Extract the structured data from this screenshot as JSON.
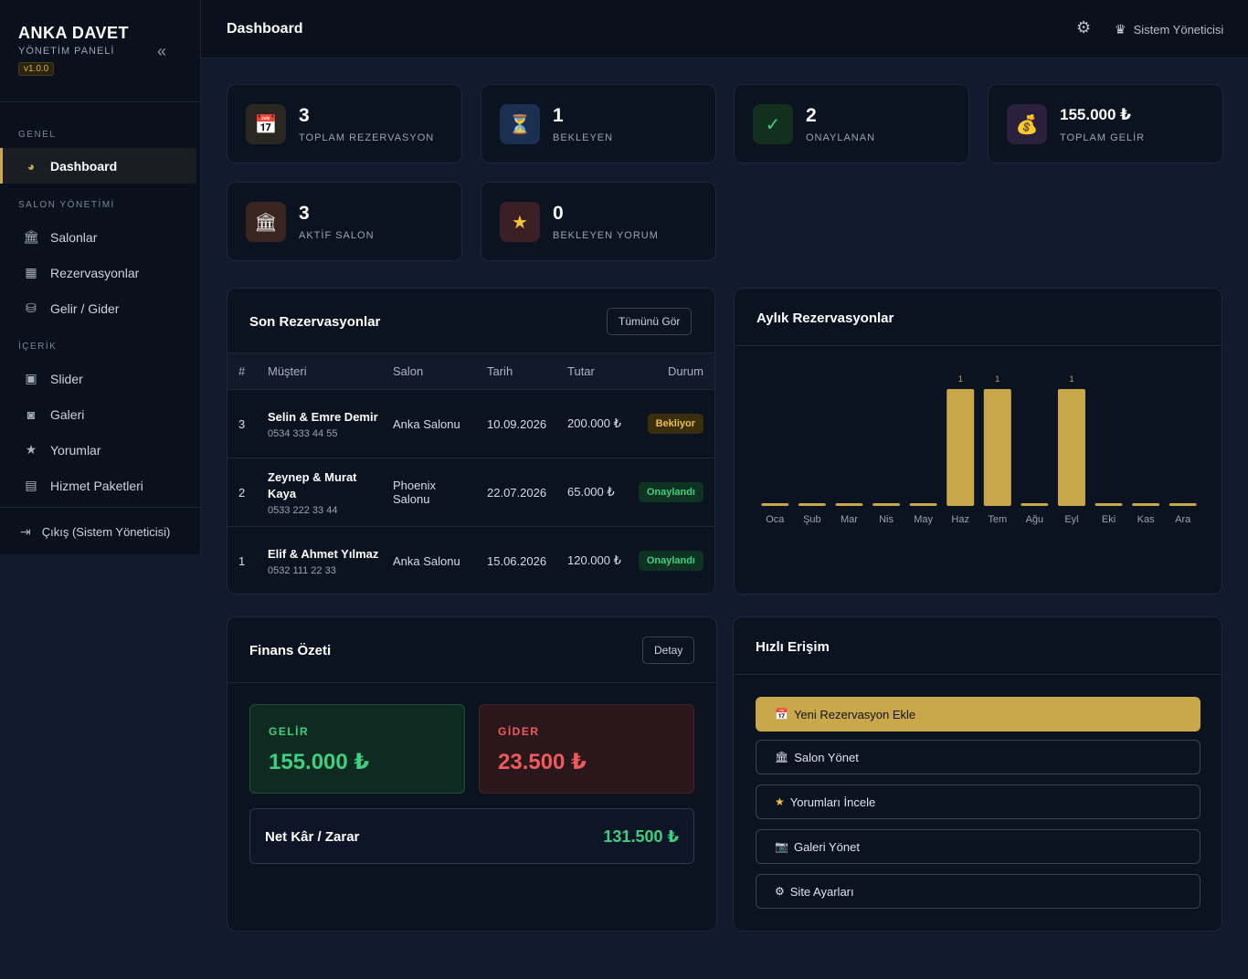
{
  "sidebar": {
    "brand_title": "ANKA DAVET",
    "brand_subtitle": "YÖNETİM PANELİ",
    "version": "v1.0.0",
    "sections": {
      "general": "GENEL",
      "salon": "SALON YÖNETİMİ",
      "content": "İÇERİK"
    },
    "items": {
      "dashboard": "Dashboard",
      "salons": "Salonlar",
      "reservations": "Rezervasyonlar",
      "finance": "Gelir / Gider",
      "slider": "Slider",
      "gallery": "Galeri",
      "reviews": "Yorumlar",
      "packages": "Hizmet Paketleri"
    },
    "logout": "Çıkış (Sistem Yöneticisi)"
  },
  "topbar": {
    "title": "Dashboard",
    "user": "Sistem Yöneticisi"
  },
  "stats": [
    {
      "value": "3",
      "label": "TOPLAM REZERVASYON",
      "icon": "calendar-icon"
    },
    {
      "value": "1",
      "label": "BEKLEYEN",
      "icon": "hourglass-icon"
    },
    {
      "value": "2",
      "label": "ONAYLANAN",
      "icon": "check-icon"
    },
    {
      "value": "155.000 ₺",
      "label": "TOPLAM GELİR",
      "icon": "money-bag-icon"
    },
    {
      "value": "3",
      "label": "AKTİF SALON",
      "icon": "building-icon"
    },
    {
      "value": "0",
      "label": "BEKLEYEN YORUM",
      "icon": "star-icon"
    }
  ],
  "recent": {
    "title": "Son Rezervasyonlar",
    "view_all": "Tümünü Gör",
    "headers": {
      "num": "#",
      "customer": "Müşteri",
      "salon": "Salon",
      "date": "Tarih",
      "amount": "Tutar",
      "status": "Durum"
    },
    "rows": [
      {
        "num": "3",
        "name": "Selin & Emre Demir",
        "phone": "0534 333 44 55",
        "salon": "Anka Salonu",
        "date": "10.09.2026",
        "amount": "200.000 ₺",
        "status": "Bekliyor"
      },
      {
        "num": "2",
        "name": "Zeynep & Murat Kaya",
        "phone": "0533 222 33 44",
        "salon": "Phoenix Salonu",
        "date": "22.07.2026",
        "amount": "65.000 ₺",
        "status": "Onaylandı"
      },
      {
        "num": "1",
        "name": "Elif & Ahmet Yılmaz",
        "phone": "0532 111 22 33",
        "salon": "Anka Salonu",
        "date": "15.06.2026",
        "amount": "120.000 ₺",
        "status": "Onaylandı"
      }
    ]
  },
  "monthly": {
    "title": "Aylık Rezervasyonlar"
  },
  "chart_data": {
    "type": "bar",
    "categories": [
      "Oca",
      "Şub",
      "Mar",
      "Nis",
      "May",
      "Haz",
      "Tem",
      "Ağu",
      "Eyl",
      "Eki",
      "Kas",
      "Ara"
    ],
    "values": [
      0,
      0,
      0,
      0,
      0,
      1,
      1,
      0,
      1,
      0,
      0,
      0
    ],
    "ylim": [
      0,
      1
    ],
    "grid": false,
    "bar_color": "#c9a84c"
  },
  "finance": {
    "title": "Finans Özeti",
    "detail": "Detay",
    "income_label": "GELİR",
    "income_value": "155.000 ₺",
    "expense_label": "GİDER",
    "expense_value": "23.500 ₺",
    "net_label": "Net Kâr / Zarar",
    "net_value": "131.500 ₺"
  },
  "quick": {
    "title": "Hızlı Erişim",
    "buttons": [
      {
        "label": "Yeni Rezervasyon Ekle",
        "icon": "calendar-icon"
      },
      {
        "label": "Salon Yönet",
        "icon": "building-icon"
      },
      {
        "label": "Yorumları İncele",
        "icon": "star-icon"
      },
      {
        "label": "Galeri Yönet",
        "icon": "camera-icon"
      },
      {
        "label": "Site Ayarları",
        "icon": "gear-icon"
      }
    ]
  },
  "colors": {
    "accent": "#c9a84c",
    "success": "#3fcf7e",
    "danger": "#ef5a5a",
    "warning": "#e9bf4d"
  }
}
